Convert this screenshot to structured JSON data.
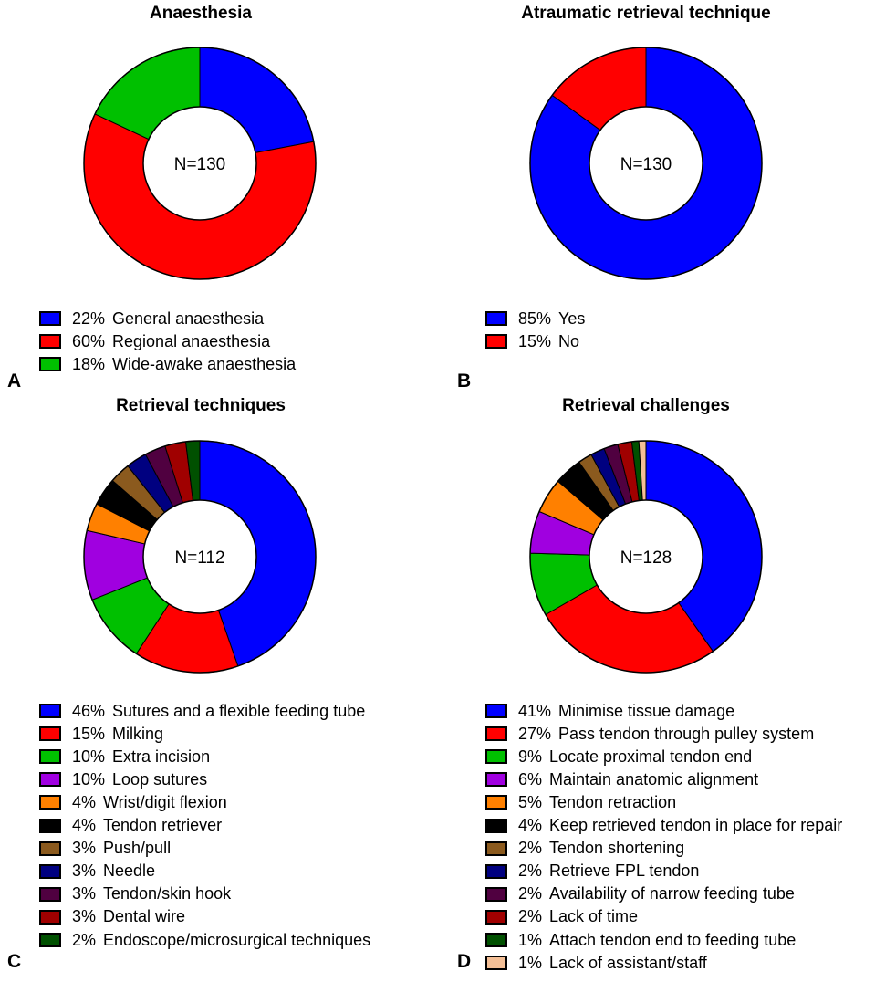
{
  "chart_data": [
    {
      "type": "pie",
      "panel": "A",
      "title": "Anaesthesia",
      "center_label": "N=130",
      "series": [
        {
          "name": "General anaesthesia",
          "value": 22,
          "label": "22%",
          "color": "#0000ff"
        },
        {
          "name": "Regional anaesthesia",
          "value": 60,
          "label": "60%",
          "color": "#ff0000"
        },
        {
          "name": "Wide-awake anaesthesia",
          "value": 18,
          "label": "18%",
          "color": "#00c000"
        }
      ]
    },
    {
      "type": "pie",
      "panel": "B",
      "title": "Atraumatic retrieval technique",
      "center_label": "N=130",
      "series": [
        {
          "name": "Yes",
          "value": 85,
          "label": "85%",
          "color": "#0000ff"
        },
        {
          "name": "No",
          "value": 15,
          "label": "15%",
          "color": "#ff0000"
        }
      ]
    },
    {
      "type": "pie",
      "panel": "C",
      "title": "Retrieval techniques",
      "center_label": "N=112",
      "series": [
        {
          "name": "Sutures and a flexible feeding tube",
          "value": 46,
          "label": "46%",
          "color": "#0000ff"
        },
        {
          "name": "Milking",
          "value": 15,
          "label": "15%",
          "color": "#ff0000"
        },
        {
          "name": "Extra incision",
          "value": 10,
          "label": "10%",
          "color": "#00c000"
        },
        {
          "name": "Loop sutures",
          "value": 10,
          "label": "10%",
          "color": "#a000e0"
        },
        {
          "name": "Wrist/digit flexion",
          "value": 4,
          "label": "4%",
          "color": "#ff8000"
        },
        {
          "name": "Tendon retriever",
          "value": 4,
          "label": "4%",
          "color": "#000000"
        },
        {
          "name": "Push/pull",
          "value": 3,
          "label": "3%",
          "color": "#8b5a1e"
        },
        {
          "name": "Needle",
          "value": 3,
          "label": "3%",
          "color": "#000080"
        },
        {
          "name": "Tendon/skin hook",
          "value": 3,
          "label": "3%",
          "color": "#500040"
        },
        {
          "name": "Dental wire",
          "value": 3,
          "label": "3%",
          "color": "#a00000"
        },
        {
          "name": "Endoscope/microsurgical techniques",
          "value": 2,
          "label": "2%",
          "color": "#005000"
        }
      ]
    },
    {
      "type": "pie",
      "panel": "D",
      "title": "Retrieval challenges",
      "center_label": "N=128",
      "series": [
        {
          "name": "Minimise tissue damage",
          "value": 41,
          "label": "41%",
          "color": "#0000ff"
        },
        {
          "name": "Pass tendon through pulley system",
          "value": 27,
          "label": "27%",
          "color": "#ff0000"
        },
        {
          "name": "Locate proximal tendon end",
          "value": 9,
          "label": "9%",
          "color": "#00c000"
        },
        {
          "name": "Maintain anatomic alignment",
          "value": 6,
          "label": "6%",
          "color": "#a000e0"
        },
        {
          "name": "Tendon retraction",
          "value": 5,
          "label": "5%",
          "color": "#ff8000"
        },
        {
          "name": "Keep retrieved tendon in place for repair",
          "value": 4,
          "label": "4%",
          "color": "#000000"
        },
        {
          "name": "Tendon shortening",
          "value": 2,
          "label": "2%",
          "color": "#8b5a1e"
        },
        {
          "name": "Retrieve FPL tendon",
          "value": 2,
          "label": "2%",
          "color": "#000080"
        },
        {
          "name": "Availability of narrow feeding tube",
          "value": 2,
          "label": "2%",
          "color": "#500040"
        },
        {
          "name": "Lack of time",
          "value": 2,
          "label": "2%",
          "color": "#a00000"
        },
        {
          "name": "Attach tendon end to feeding tube",
          "value": 1,
          "label": "1%",
          "color": "#005000"
        },
        {
          "name": "Lack of assistant/staff",
          "value": 1,
          "label": "1%",
          "color": "#f4bf96"
        }
      ]
    }
  ]
}
